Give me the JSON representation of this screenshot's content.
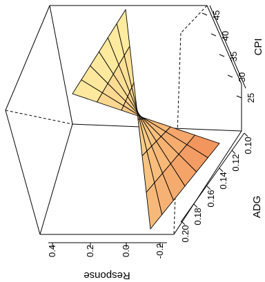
{
  "chart_data": {
    "type": "surface3d",
    "title": "",
    "x_axis": {
      "label": "ADG",
      "ticks": [
        "0.10",
        "0.12",
        "0.14",
        "0.16",
        "0.18",
        "0.20"
      ],
      "range": [
        0.1,
        0.2
      ]
    },
    "y_axis": {
      "label": "CPI",
      "ticks": [
        "25",
        "30",
        "35",
        "40",
        "45"
      ],
      "range": [
        20,
        45
      ]
    },
    "z_axis": {
      "label": "Response",
      "ticks": [
        "-0.2",
        "0.0",
        "0.2",
        "0.4"
      ],
      "range": [
        -0.3,
        0.45
      ]
    },
    "surface": {
      "grid": [
        6,
        6
      ],
      "z_low": -0.22,
      "z_high": 0.42,
      "color_low": "#f08a55",
      "color_high": "#fff0a3",
      "edge_color": "#000000"
    },
    "box_color": "#000000"
  }
}
